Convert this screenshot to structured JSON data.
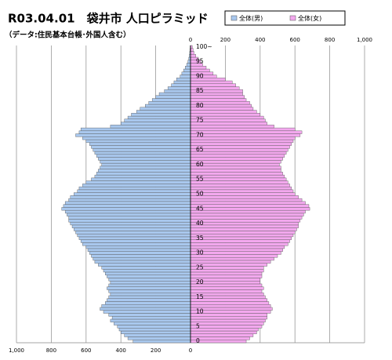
{
  "chart_data": {
    "type": "pyramid",
    "title": "R03.04.01　袋井市 人口ピラミッド",
    "subtitle": "（データ:住民基本台帳･外国人含む）",
    "categories": [
      "0",
      null,
      null,
      null,
      null,
      "5",
      null,
      null,
      null,
      null,
      "10",
      null,
      null,
      null,
      null,
      "15",
      null,
      null,
      null,
      null,
      "20",
      null,
      null,
      null,
      null,
      "25",
      null,
      null,
      null,
      null,
      "30",
      null,
      null,
      null,
      null,
      "35",
      null,
      null,
      null,
      null,
      "40",
      null,
      null,
      null,
      null,
      "45",
      null,
      null,
      null,
      null,
      "50",
      null,
      null,
      null,
      null,
      "55",
      null,
      null,
      null,
      null,
      "60",
      null,
      null,
      null,
      null,
      "65",
      null,
      null,
      null,
      null,
      "70",
      null,
      null,
      null,
      null,
      "75",
      null,
      null,
      null,
      null,
      "80",
      null,
      null,
      null,
      null,
      "85",
      null,
      null,
      null,
      null,
      "90",
      null,
      null,
      null,
      null,
      "95",
      null,
      null,
      null,
      null,
      "100~"
    ],
    "series": [
      {
        "name": "全体(男)",
        "color": "#a9c8ee",
        "side": "left",
        "values": [
          330,
          360,
          380,
          400,
          410,
          420,
          440,
          460,
          450,
          470,
          500,
          520,
          510,
          490,
          480,
          470,
          460,
          470,
          480,
          470,
          460,
          470,
          480,
          490,
          500,
          510,
          530,
          550,
          560,
          570,
          580,
          590,
          600,
          620,
          630,
          640,
          650,
          660,
          670,
          680,
          690,
          700,
          700,
          710,
          720,
          740,
          730,
          720,
          700,
          690,
          670,
          650,
          640,
          620,
          600,
          570,
          550,
          540,
          530,
          520,
          510,
          520,
          530,
          540,
          550,
          560,
          570,
          580,
          600,
          620,
          660,
          640,
          630,
          460,
          400,
          380,
          360,
          340,
          310,
          290,
          260,
          240,
          220,
          200,
          180,
          150,
          130,
          110,
          95,
          80,
          60,
          50,
          40,
          30,
          22,
          15,
          10,
          7,
          5,
          3,
          2
        ]
      },
      {
        "name": "全体(女)",
        "color": "#f3a8ee",
        "side": "right",
        "values": [
          320,
          340,
          360,
          380,
          390,
          410,
          420,
          430,
          440,
          440,
          460,
          470,
          460,
          450,
          440,
          430,
          420,
          410,
          420,
          410,
          400,
          400,
          410,
          410,
          420,
          420,
          440,
          460,
          480,
          500,
          520,
          530,
          540,
          560,
          570,
          580,
          590,
          600,
          610,
          620,
          620,
          630,
          640,
          650,
          660,
          685,
          680,
          660,
          640,
          620,
          600,
          590,
          580,
          570,
          560,
          550,
          540,
          530,
          520,
          520,
          510,
          520,
          530,
          540,
          550,
          560,
          570,
          580,
          590,
          600,
          630,
          640,
          600,
          480,
          440,
          430,
          420,
          400,
          380,
          360,
          350,
          340,
          320,
          310,
          300,
          300,
          280,
          260,
          240,
          200,
          150,
          130,
          110,
          90,
          70,
          60,
          45,
          30,
          20,
          15,
          10
        ]
      }
    ],
    "xlim": [
      0,
      1000
    ],
    "xticks": [
      0,
      200,
      400,
      600,
      800,
      {
        "value": 1000,
        "label": "1,000"
      }
    ],
    "grid": true
  }
}
